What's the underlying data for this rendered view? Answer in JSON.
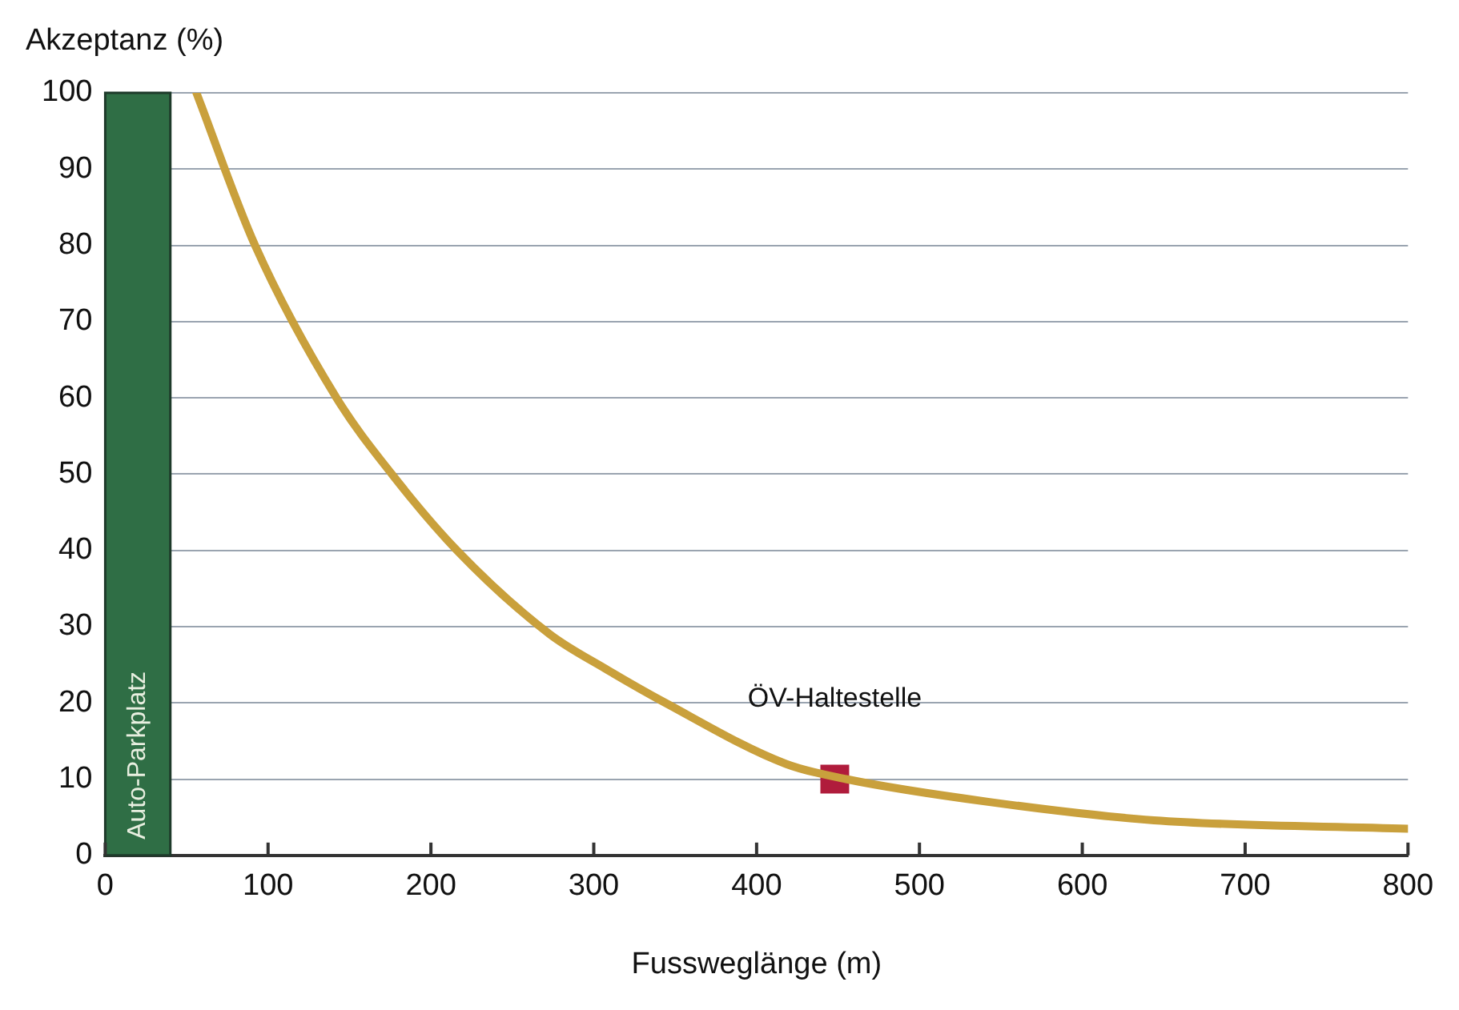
{
  "chart_data": {
    "type": "line",
    "ylabel": "Akzeptanz (%)",
    "xlabel": "Fussweglänge (m)",
    "xlim": [
      0,
      800
    ],
    "xticks": [
      0,
      100,
      200,
      300,
      400,
      500,
      600,
      700,
      800
    ],
    "ylim": [
      0,
      100
    ],
    "yticks": [
      0,
      10,
      20,
      30,
      40,
      50,
      60,
      70,
      80,
      90,
      100
    ],
    "grid": "y",
    "marker": "none",
    "line_style": "solid",
    "series": [
      {
        "color": "#c9a03c",
        "x": [
          56,
          92,
          142,
          176,
          216,
          273,
          307,
          344,
          418,
          455,
          543,
          644,
          800
        ],
        "values": [
          100,
          80,
          60,
          50,
          40,
          29,
          24.5,
          20,
          12,
          10,
          7,
          4.6,
          3.5
        ]
      },
      {
        "type": "scatter",
        "marker": "square",
        "color": "#b01c3c",
        "x": [
          448
        ],
        "values": [
          10
        ]
      }
    ],
    "bands": [
      {
        "axis": "x",
        "from": 0,
        "to": 40,
        "label": "Auto-Parkplatz",
        "color": "#2f6e45"
      }
    ],
    "annotations": [
      {
        "text": "ÖV-Haltestelle",
        "x": 448,
        "y": 10
      }
    ]
  }
}
